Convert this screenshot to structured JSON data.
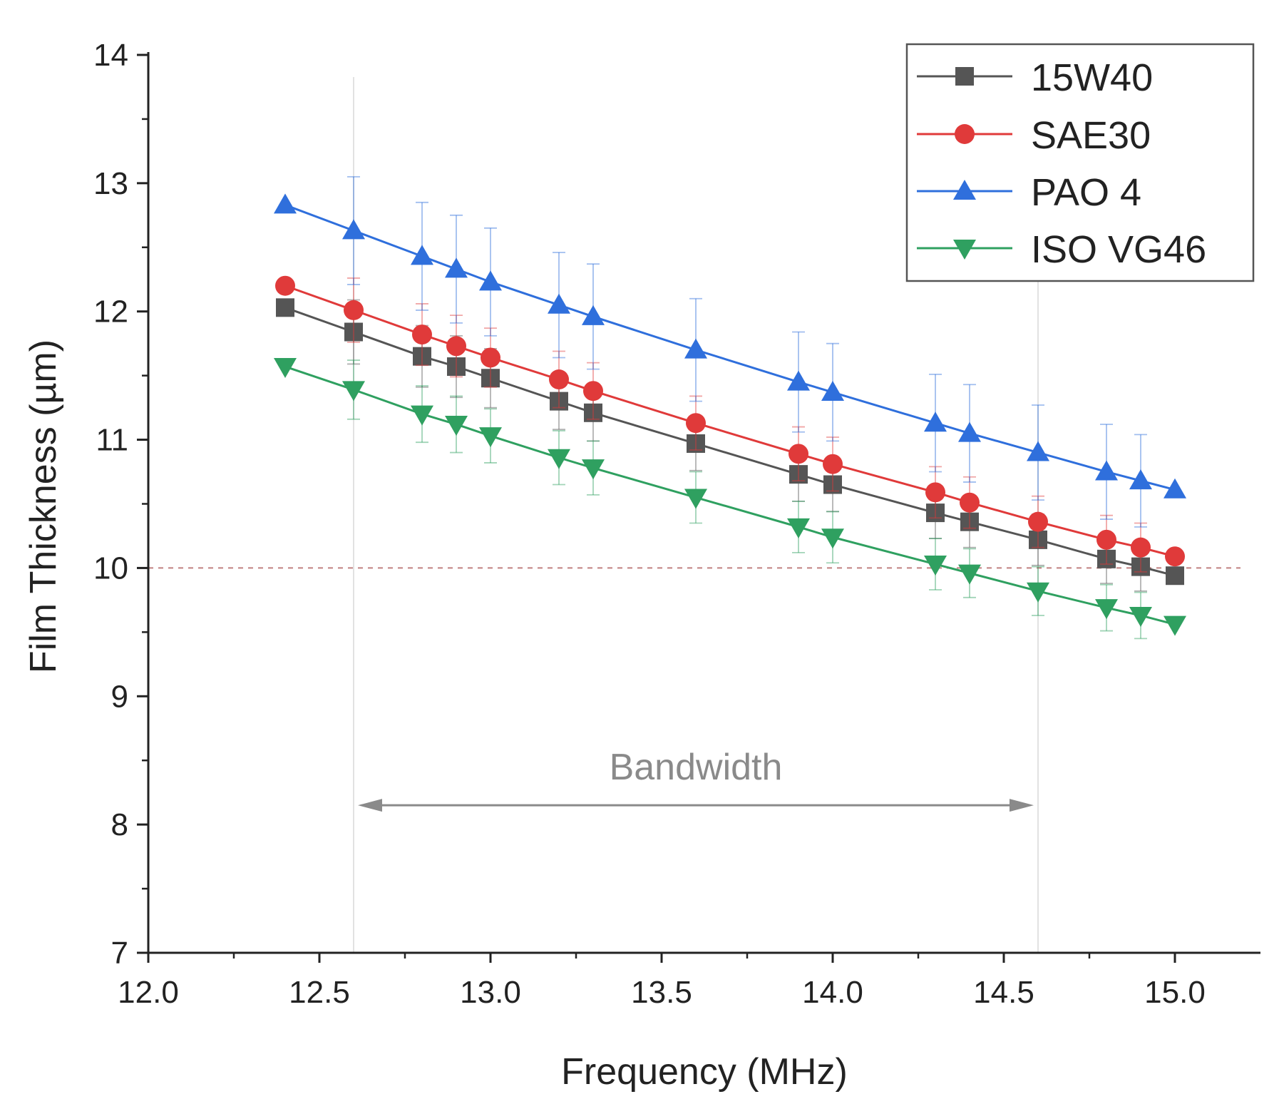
{
  "chart_data": {
    "type": "line",
    "title": "",
    "xlabel": "Frequency (MHz)",
    "ylabel": "Film Thickness (µm)",
    "xlim": [
      12.0,
      15.25
    ],
    "ylim": [
      7,
      14
    ],
    "x_ticks": [
      12.0,
      12.5,
      13.0,
      13.5,
      14.0,
      14.5,
      15.0
    ],
    "x_tick_labels": [
      "12.0",
      "12.5",
      "13.0",
      "13.5",
      "14.0",
      "14.5",
      "15.0"
    ],
    "y_ticks": [
      7,
      8,
      9,
      10,
      11,
      12,
      13,
      14
    ],
    "y_tick_labels": [
      "7",
      "8",
      "9",
      "10",
      "11",
      "12",
      "13",
      "14"
    ],
    "grid": false,
    "legend_position": "top-right",
    "x": [
      12.4,
      12.6,
      12.8,
      12.9,
      13.0,
      13.2,
      13.3,
      13.6,
      13.9,
      14.0,
      14.3,
      14.4,
      14.6,
      14.8,
      14.9,
      15.0
    ],
    "series": [
      {
        "name": "15W40",
        "color": "#555555",
        "marker": "square",
        "values": [
          12.03,
          11.84,
          11.65,
          11.57,
          11.48,
          11.3,
          11.21,
          10.97,
          10.73,
          10.65,
          10.43,
          10.36,
          10.22,
          10.07,
          10.01,
          9.94
        ],
        "errors": [
          0,
          0.25,
          0.24,
          0.24,
          0.23,
          0.22,
          0.22,
          0.21,
          0.21,
          0.21,
          0.2,
          0.2,
          0.2,
          0.19,
          0.19,
          0
        ]
      },
      {
        "name": "SAE30",
        "color": "#e03a3a",
        "marker": "circle",
        "values": [
          12.2,
          12.01,
          11.82,
          11.73,
          11.64,
          11.47,
          11.38,
          11.13,
          10.89,
          10.81,
          10.59,
          10.51,
          10.36,
          10.22,
          10.16,
          10.09
        ],
        "errors": [
          0,
          0.25,
          0.24,
          0.24,
          0.23,
          0.22,
          0.22,
          0.21,
          0.21,
          0.21,
          0.2,
          0.2,
          0.2,
          0.19,
          0.19,
          0
        ]
      },
      {
        "name": "PAO 4",
        "color": "#2f6fdc",
        "marker": "triangle-up",
        "values": [
          12.83,
          12.63,
          12.43,
          12.33,
          12.23,
          12.05,
          11.96,
          11.7,
          11.45,
          11.37,
          11.13,
          11.05,
          10.9,
          10.75,
          10.68,
          10.61
        ],
        "errors": [
          0,
          0.42,
          0.42,
          0.42,
          0.42,
          0.41,
          0.41,
          0.4,
          0.39,
          0.38,
          0.38,
          0.38,
          0.37,
          0.37,
          0.36,
          0
        ]
      },
      {
        "name": "ISO VG46",
        "color": "#2fa060",
        "marker": "triangle-down",
        "values": [
          11.57,
          11.39,
          11.2,
          11.12,
          11.03,
          10.86,
          10.78,
          10.55,
          10.32,
          10.24,
          10.03,
          9.96,
          9.82,
          9.69,
          9.63,
          9.56
        ],
        "errors": [
          0,
          0.23,
          0.22,
          0.22,
          0.21,
          0.21,
          0.21,
          0.2,
          0.2,
          0.2,
          0.2,
          0.19,
          0.19,
          0.18,
          0.18,
          0
        ]
      }
    ],
    "reference_line": {
      "y": 10,
      "style": "dashed",
      "color": "#c08080"
    },
    "bandwidth": {
      "label": "Bandwidth",
      "x_start": 12.6,
      "x_end": 14.6,
      "y": 8.15,
      "color": "#8a8a8a"
    }
  }
}
